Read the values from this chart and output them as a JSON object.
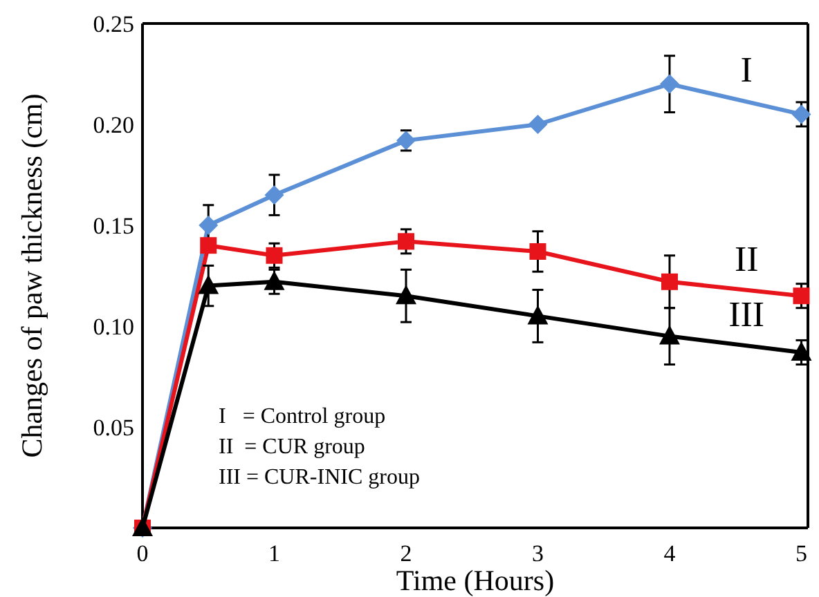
{
  "chart_data": {
    "type": "line",
    "xlabel": "Time (Hours)",
    "ylabel": "Changes of paw thickness (cm)",
    "x": [
      0,
      0.5,
      1,
      2,
      3,
      4,
      5
    ],
    "xlim": [
      0,
      5.05
    ],
    "xticks": [
      0,
      1,
      2,
      3,
      4,
      5
    ],
    "ylim": [
      0,
      0.25
    ],
    "yticks": [
      {
        "value": 0.05,
        "label": "0.05"
      },
      {
        "value": 0.1,
        "label": "0.10"
      },
      {
        "value": 0.15,
        "label": "0.15"
      },
      {
        "value": 0.2,
        "label": "0.20"
      },
      {
        "value": 0.25,
        "label": "0.25"
      }
    ],
    "grid": false,
    "line_style": "solid",
    "series": [
      {
        "name": "I",
        "color": "#5b8fd6",
        "marker": "diamond",
        "values": [
          0,
          0.15,
          0.165,
          0.192,
          0.2,
          0.22,
          0.205
        ],
        "errors": [
          null,
          0.01,
          0.01,
          0.005,
          null,
          0.014,
          0.006
        ]
      },
      {
        "name": "II",
        "color": "#e8141c",
        "marker": "square",
        "values": [
          0,
          0.14,
          0.135,
          0.142,
          0.137,
          0.122,
          0.115
        ],
        "errors": [
          null,
          null,
          0.006,
          0.006,
          0.01,
          0.013,
          0.006
        ]
      },
      {
        "name": "III",
        "color": "#000000",
        "marker": "triangle",
        "values": [
          0,
          0.12,
          0.122,
          0.115,
          0.105,
          0.095,
          0.087
        ],
        "errors": [
          null,
          0.01,
          0.006,
          0.013,
          0.013,
          0.014,
          0.006
        ]
      }
    ],
    "annotations": [
      "I   = Control group",
      "II  = CUR group",
      "III = CUR-INIC group"
    ]
  }
}
